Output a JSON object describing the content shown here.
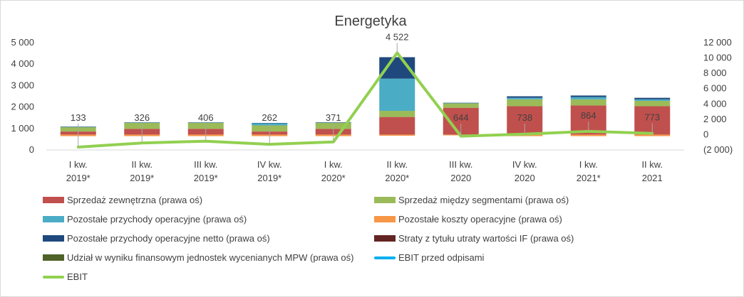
{
  "chart_data": {
    "type": "bar",
    "title": "Energetyka",
    "categories": [
      [
        "I kw.",
        "2019*"
      ],
      [
        "II kw.",
        "2019*"
      ],
      [
        "III kw.",
        "2019*"
      ],
      [
        "IV kw.",
        "2019*"
      ],
      [
        "I kw.",
        "2020*"
      ],
      [
        "II kw.",
        "2020*"
      ],
      [
        "III kw.",
        "2020"
      ],
      [
        "IV kw.",
        "2020"
      ],
      [
        "I kw.",
        "2021*"
      ],
      [
        "II kw.",
        "2021"
      ]
    ],
    "left_axis": {
      "range": [
        0,
        5000
      ],
      "ticks": [
        0,
        1000,
        2000,
        3000,
        4000,
        5000
      ],
      "tick_labels": [
        "0",
        "1 000",
        "2 000",
        "3 000",
        "4 000",
        "5 000"
      ]
    },
    "right_axis": {
      "range": [
        -2000,
        12000
      ],
      "ticks": [
        -2000,
        0,
        2000,
        4000,
        6000,
        8000,
        10000,
        12000
      ],
      "tick_labels": [
        "(2 000)",
        "0",
        "2 000",
        "4 000",
        "6 000",
        "8 000",
        "10 000",
        "12 000"
      ]
    },
    "grid": false,
    "legend_position": "bottom",
    "series": [
      {
        "name": "Sprzedaż zewnętrzna (prawa oś)",
        "kind": "bar",
        "axis": "right",
        "color": "#c0504d",
        "values": [
          400,
          750,
          750,
          400,
          750,
          2300,
          3500,
          3700,
          3800,
          3700
        ]
      },
      {
        "name": "Sprzedaż między segmentami (prawa oś)",
        "kind": "bar",
        "axis": "right",
        "color": "#9bbb59",
        "values": [
          600,
          800,
          800,
          800,
          800,
          800,
          600,
          900,
          800,
          700
        ]
      },
      {
        "name": "Pozostałe przychody operacyjne (prawa oś)",
        "kind": "bar",
        "axis": "right",
        "color": "#4bacc6",
        "values": [
          20,
          20,
          20,
          300,
          50,
          4200,
          30,
          200,
          300,
          200
        ]
      },
      {
        "name": "Pozostałe koszty operacyjne (prawa oś)",
        "kind": "bar",
        "axis": "right",
        "color": "#f79646",
        "values": [
          -200,
          -200,
          -200,
          -200,
          -200,
          -150,
          -100,
          -200,
          -200,
          -200
        ]
      },
      {
        "name": "Pozostałe przychody operacyjne netto (prawa oś)",
        "kind": "bar",
        "axis": "right",
        "color": "#1f497d",
        "values": [
          20,
          20,
          20,
          20,
          20,
          2800,
          20,
          200,
          200,
          200
        ]
      },
      {
        "name": "Straty z tytułu utraty wartości IF (prawa oś)",
        "kind": "bar",
        "axis": "right",
        "color": "#632523",
        "values": [
          0,
          0,
          0,
          0,
          0,
          0,
          0,
          0,
          0,
          0
        ]
      },
      {
        "name": "Udział w wyniku finansowym jednostek wycenianych MPW (prawa oś)",
        "kind": "bar",
        "axis": "right",
        "color": "#4f6228",
        "values": [
          0,
          0,
          0,
          0,
          0,
          0,
          0,
          0,
          0,
          0
        ]
      },
      {
        "name": "EBIT przed odpisami",
        "kind": "line",
        "axis": "left",
        "color": "#00b0f0",
        "values": [
          133,
          326,
          406,
          262,
          371,
          4522,
          644,
          738,
          864,
          773
        ]
      },
      {
        "name": "EBIT",
        "kind": "line",
        "axis": "left",
        "color": "#92d050",
        "values": [
          133,
          326,
          406,
          262,
          371,
          4522,
          644,
          738,
          864,
          773
        ]
      }
    ],
    "data_labels": [
      "133",
      "326",
      "406",
      "262",
      "371",
      "4 522",
      "644",
      "738",
      "864",
      "773"
    ]
  }
}
